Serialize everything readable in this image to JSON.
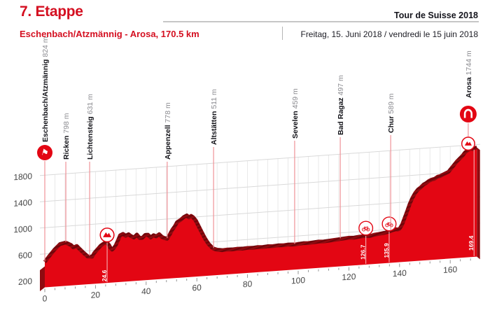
{
  "header": {
    "stage": "7. Etappe",
    "event": "Tour de Suisse 2018",
    "route": "Eschenbach/Atzmännig - Arosa, 170.5 km",
    "date": "Freitag, 15. Juni 2018 / vendredi le 15 juin 2018"
  },
  "colors": {
    "text_red": "#d40f20",
    "profile_red": "#e30613",
    "ridge_dark": "#8f0b10",
    "ridge_darker": "#6d050a",
    "side_dark": "#8f0b10",
    "grid": "#e4e4e4",
    "ink": "#15151d",
    "town_name": "#101016",
    "town_elev": "#8b8b90",
    "axis_text": "#454545",
    "marker_line": "#ef9298",
    "white": "#ffffff"
  },
  "chart_data": {
    "type": "area",
    "x_unit": "km",
    "y_unit": "m",
    "xlim": [
      0,
      170.5
    ],
    "x_ticks": [
      0,
      20,
      40,
      60,
      80,
      100,
      120,
      140,
      160
    ],
    "x_minor_step": 4,
    "y_ticks": [
      200,
      600,
      1000,
      1400,
      1800
    ],
    "grid": true,
    "profile_km_m": [
      [
        0,
        478
      ],
      [
        1.6,
        555
      ],
      [
        3.8,
        655
      ],
      [
        6,
        734
      ],
      [
        8.2,
        750
      ],
      [
        10.2,
        711
      ],
      [
        11.3,
        668
      ],
      [
        12.6,
        686
      ],
      [
        13.7,
        640
      ],
      [
        15.4,
        571
      ],
      [
        17,
        513
      ],
      [
        18.7,
        508
      ],
      [
        19.5,
        560
      ],
      [
        22,
        664
      ],
      [
        23.2,
        695
      ],
      [
        24.4,
        715
      ],
      [
        25.4,
        660
      ],
      [
        26,
        616
      ],
      [
        26.6,
        594
      ],
      [
        27.2,
        614
      ],
      [
        28,
        656
      ],
      [
        28.9,
        729
      ],
      [
        29.7,
        802
      ],
      [
        30.8,
        821
      ],
      [
        31.9,
        789
      ],
      [
        33,
        809
      ],
      [
        34.1,
        776
      ],
      [
        35.2,
        754
      ],
      [
        36.3,
        795
      ],
      [
        37.4,
        741
      ],
      [
        38.5,
        740
      ],
      [
        39.6,
        781
      ],
      [
        40.7,
        780
      ],
      [
        41.8,
        737
      ],
      [
        42.9,
        768
      ],
      [
        44,
        746
      ],
      [
        45.1,
        777
      ],
      [
        46.2,
        733
      ],
      [
        47.2,
        712
      ],
      [
        48.3,
        700
      ],
      [
        49.3,
        760
      ],
      [
        50.3,
        830
      ],
      [
        51.3,
        880
      ],
      [
        52.2,
        941
      ],
      [
        53.6,
        972
      ],
      [
        54.9,
        1013
      ],
      [
        56,
        1033
      ],
      [
        56.9,
        1001
      ],
      [
        57.7,
        1021
      ],
      [
        58.5,
        999
      ],
      [
        59.6,
        944
      ],
      [
        60.7,
        857
      ],
      [
        61.8,
        771
      ],
      [
        63.2,
        663
      ],
      [
        64.6,
        576
      ],
      [
        65.9,
        521
      ],
      [
        66.6,
        498
      ],
      [
        68,
        478
      ],
      [
        70,
        465
      ],
      [
        72,
        470
      ],
      [
        74,
        466
      ],
      [
        76,
        471
      ],
      [
        78,
        467
      ],
      [
        80,
        472
      ],
      [
        82,
        468
      ],
      [
        84,
        474
      ],
      [
        86,
        470
      ],
      [
        88,
        476
      ],
      [
        90,
        472
      ],
      [
        92,
        478
      ],
      [
        94,
        474
      ],
      [
        96,
        480
      ],
      [
        98,
        476
      ],
      [
        98.6,
        472
      ],
      [
        100,
        478
      ],
      [
        102,
        484
      ],
      [
        104,
        480
      ],
      [
        106,
        486
      ],
      [
        108,
        492
      ],
      [
        110,
        488
      ],
      [
        112,
        494
      ],
      [
        114,
        500
      ],
      [
        116,
        505
      ],
      [
        116.6,
        508
      ],
      [
        118,
        512
      ],
      [
        120,
        518
      ],
      [
        122,
        514
      ],
      [
        124,
        522
      ],
      [
        126.7,
        528
      ],
      [
        128.5,
        522
      ],
      [
        130,
        536
      ],
      [
        132,
        544
      ],
      [
        134,
        554
      ],
      [
        135.9,
        568
      ],
      [
        136.5,
        578
      ],
      [
        137.5,
        588
      ],
      [
        138.5,
        596
      ],
      [
        139.3,
        590
      ],
      [
        140,
        600
      ],
      [
        141,
        660
      ],
      [
        142,
        760
      ],
      [
        143,
        860
      ],
      [
        144,
        966
      ],
      [
        145.1,
        1059
      ],
      [
        146.2,
        1130
      ],
      [
        147.3,
        1180
      ],
      [
        148.4,
        1209
      ],
      [
        149.5,
        1249
      ],
      [
        150.5,
        1268
      ],
      [
        151.6,
        1297
      ],
      [
        152.7,
        1315
      ],
      [
        153.8,
        1323
      ],
      [
        155,
        1352
      ],
      [
        156,
        1359
      ],
      [
        157.1,
        1378
      ],
      [
        158.2,
        1396
      ],
      [
        159.3,
        1414
      ],
      [
        160.4,
        1464
      ],
      [
        161.5,
        1514
      ],
      [
        162.6,
        1564
      ],
      [
        163.7,
        1603
      ],
      [
        164.8,
        1643
      ],
      [
        165.9,
        1695
      ],
      [
        167,
        1725
      ],
      [
        168.1,
        1744
      ],
      [
        168.9,
        1736
      ],
      [
        169.4,
        1745
      ],
      [
        170.5,
        1756
      ]
    ],
    "towns": [
      {
        "name": "Eschenbach/Atzmännig",
        "elevation": "824 m",
        "km": 0,
        "marker": "start"
      },
      {
        "name": "Ricken",
        "elevation": "798 m",
        "km": 8.3
      },
      {
        "name": "Lichtensteig",
        "elevation": "631 m",
        "km": 17.7
      },
      {
        "name": "Appenzell",
        "elevation": "778 m",
        "km": 48.3
      },
      {
        "name": "Altstätten",
        "elevation": "511 m",
        "km": 66.6
      },
      {
        "name": "Sevelen",
        "elevation": "459 m",
        "km": 98.6
      },
      {
        "name": "Bad Ragaz",
        "elevation": "497 m",
        "km": 116.6
      },
      {
        "name": "Chur",
        "elevation": "589 m",
        "km": 136.5
      },
      {
        "name": "Arosa",
        "elevation": "1744 m",
        "km": 167.1,
        "marker": "finish"
      }
    ],
    "waypoints": [
      {
        "km": 24.6,
        "label": "24.6",
        "type": "climb"
      },
      {
        "km": 126.7,
        "label": "126.7",
        "type": "sprint"
      },
      {
        "km": 135.9,
        "label": "135.9",
        "type": "sprint"
      },
      {
        "km": 169.4,
        "label": "169.4",
        "type": "finish-line"
      }
    ]
  }
}
